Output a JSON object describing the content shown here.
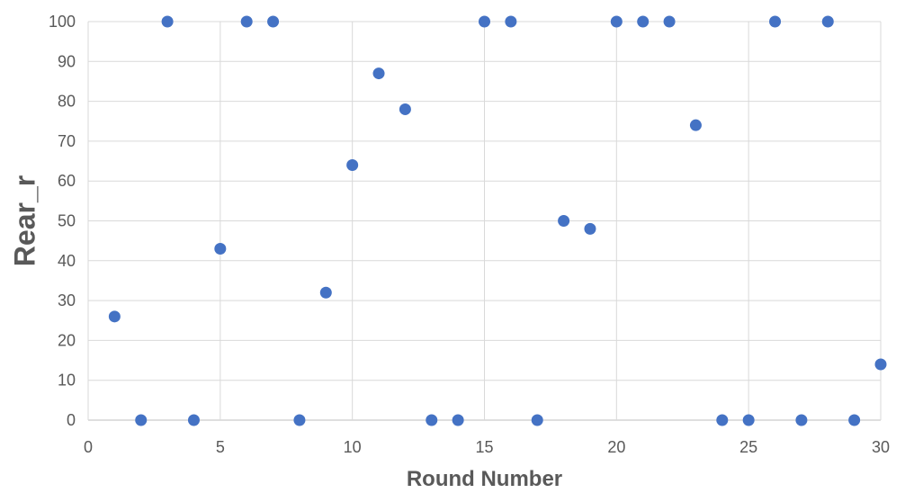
{
  "chart_data": {
    "type": "scatter",
    "title": "",
    "xlabel": "Round Number",
    "ylabel": "Rear_r",
    "xlim": [
      0,
      30
    ],
    "ylim": [
      0,
      100
    ],
    "x_ticks": [
      0,
      5,
      10,
      15,
      20,
      25,
      30
    ],
    "y_ticks": [
      0,
      10,
      20,
      30,
      40,
      50,
      60,
      70,
      80,
      90,
      100
    ],
    "grid": true,
    "legend": "none",
    "marker_color": "#4472C4",
    "series": [
      {
        "x": [
          1,
          2,
          3,
          4,
          5,
          6,
          7,
          8,
          9,
          10,
          11,
          12,
          13,
          14,
          15,
          16,
          17,
          18,
          19,
          20,
          21,
          22,
          23,
          24,
          25,
          26,
          27,
          28,
          29,
          30
        ],
        "y": [
          26,
          0,
          100,
          0,
          43,
          100,
          100,
          0,
          32,
          64,
          87,
          78,
          0,
          0,
          100,
          100,
          0,
          50,
          48,
          100,
          100,
          100,
          74,
          0,
          0,
          100,
          0,
          100,
          0,
          14
        ]
      }
    ]
  }
}
